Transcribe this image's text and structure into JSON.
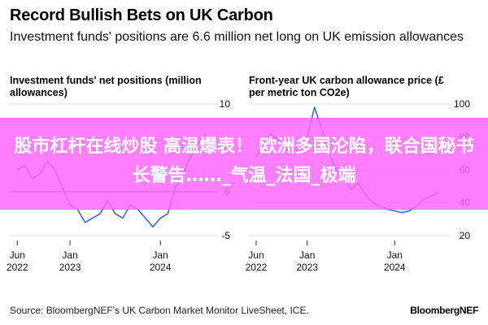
{
  "header": {
    "title": "Record Bullish Bets on UK Carbon",
    "subtitle": "Investment funds' positions are 6.6 million net long on UK emission allowances"
  },
  "overlay": {
    "text": "股市杠杆在线炒股 高温爆表！ 欧洲多国沦陷，联合国秘书长警告……_气温_法国_极端",
    "color": "#ff66ff"
  },
  "footer": {
    "source": "Source: BloombergNEF's UK Carbon Market Monitor LiveSheet, ICE.",
    "brand": "BloombergNEF"
  },
  "colors": {
    "series": "#2b6cf5",
    "grid": "#dddddd",
    "zero_line": "#444444"
  },
  "chart_data": [
    {
      "type": "line",
      "title": "Investment funds' net positions (million allowances)",
      "ylim": [
        -5,
        10
      ],
      "yticks": [
        10,
        "",
        0,
        -5
      ],
      "ytick_labels": [
        "10",
        "5",
        "0",
        "-5"
      ],
      "zero_line": 0,
      "xlim": [
        "2022-05",
        "2024-08"
      ],
      "xticks": [
        {
          "x": "2022-06",
          "label": "Jun",
          "sub": "2022"
        },
        {
          "x": "2023-01",
          "label": "Jan",
          "sub": "2023"
        },
        {
          "x": "2024-01",
          "label": "Jan",
          "sub": "2024"
        }
      ],
      "series": [
        {
          "x": [
            "2022-06",
            "2022-07",
            "2022-08",
            "2022-09",
            "2022-10",
            "2022-11",
            "2022-12",
            "2023-01",
            "2023-02",
            "2023-03",
            "2023-04",
            "2023-05",
            "2023-06",
            "2023-07",
            "2023-08",
            "2023-09",
            "2023-10",
            "2023-11",
            "2023-12",
            "2024-01",
            "2024-02",
            "2024-03",
            "2024-04",
            "2024-05",
            "2024-06",
            "2024-07"
          ],
          "values": [
            2.5,
            3.0,
            1.5,
            2.0,
            3.5,
            2.5,
            0.5,
            -1.5,
            -2.0,
            -3.5,
            -3.0,
            -2.5,
            -1.0,
            -2.5,
            -3.0,
            -1.5,
            -2.0,
            -3.0,
            -4.0,
            -3.0,
            -2.5,
            0.5,
            2.0,
            4.0,
            5.5,
            6.6
          ]
        }
      ]
    },
    {
      "type": "line",
      "title": "Front-year UK carbon allowance price (£ per metric ton CO2e)",
      "ylim": [
        20,
        100
      ],
      "ytick_labels": [
        "100",
        "80",
        "60",
        "40",
        "20"
      ],
      "xlim": [
        "2022-05",
        "2024-08"
      ],
      "xticks": [
        {
          "x": "2022-06",
          "label": "Jun",
          "sub": "2022"
        },
        {
          "x": "2023-01",
          "label": "Jan",
          "sub": "2023"
        },
        {
          "x": "2024-01",
          "label": "Jan",
          "sub": "2024"
        }
      ],
      "series": [
        {
          "x": [
            "2022-06",
            "2022-07",
            "2022-08",
            "2022-09",
            "2022-10",
            "2022-11",
            "2022-12",
            "2023-01",
            "2023-02",
            "2023-03",
            "2023-04",
            "2023-05",
            "2023-06",
            "2023-07",
            "2023-08",
            "2023-09",
            "2023-10",
            "2023-11",
            "2023-12",
            "2024-01",
            "2024-02",
            "2024-03",
            "2024-04",
            "2024-05",
            "2024-06",
            "2024-07"
          ],
          "values": [
            68,
            75,
            82,
            78,
            72,
            74,
            70,
            80,
            98,
            85,
            70,
            60,
            55,
            48,
            52,
            45,
            40,
            38,
            36,
            35,
            34,
            35,
            38,
            42,
            44,
            46
          ]
        }
      ]
    }
  ]
}
